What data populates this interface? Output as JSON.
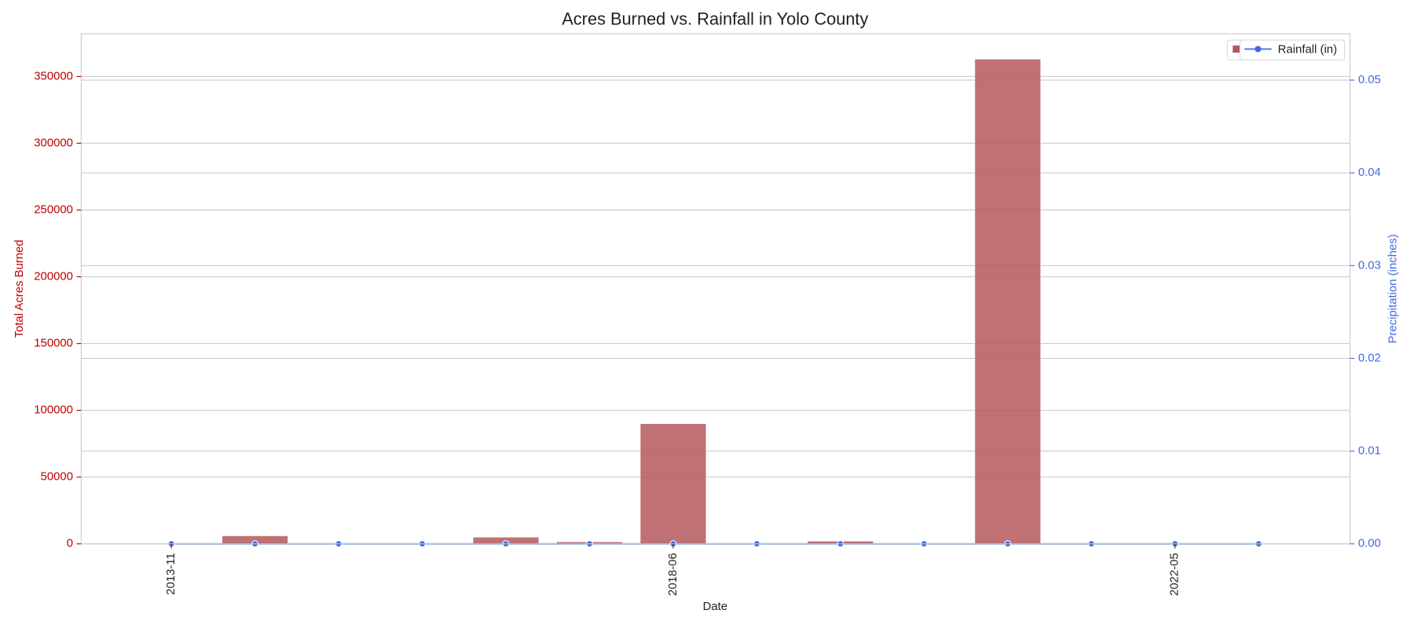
{
  "chart_data": {
    "type": "bar",
    "title": "Acres Burned vs. Rainfall in Yolo County",
    "x_label": "Date",
    "y_label": "Total Acres Burned",
    "y2_label": "Precipitation (inches)",
    "categories": [
      "2013-11",
      null,
      null,
      null,
      null,
      null,
      "2018-06",
      null,
      null,
      null,
      null,
      null,
      "2022-05",
      null
    ],
    "series": [
      {
        "color": "#b4585b",
        "values": [
          0,
          6000,
          0,
          0,
          5000,
          1500,
          90000,
          500,
          2000,
          0,
          363000,
          0,
          0,
          0
        ]
      },
      {
        "name": "Rainfall (in)",
        "type": "line",
        "axis": "y2",
        "color": "#4169e1",
        "values": [
          0,
          0,
          0,
          0,
          0,
          0,
          0,
          0,
          0,
          0,
          0,
          0,
          0,
          0
        ]
      }
    ],
    "ylim": [
      0,
      382000
    ],
    "yticks": [
      0,
      50000,
      100000,
      150000,
      200000,
      250000,
      300000,
      350000
    ],
    "y2lim": [
      0,
      0.055
    ],
    "y2ticks": [
      {
        "value": 0,
        "label": "0.00"
      },
      0.01,
      0.02,
      0.03,
      0.04,
      0.05
    ],
    "grid": true,
    "legend": "upper right"
  }
}
